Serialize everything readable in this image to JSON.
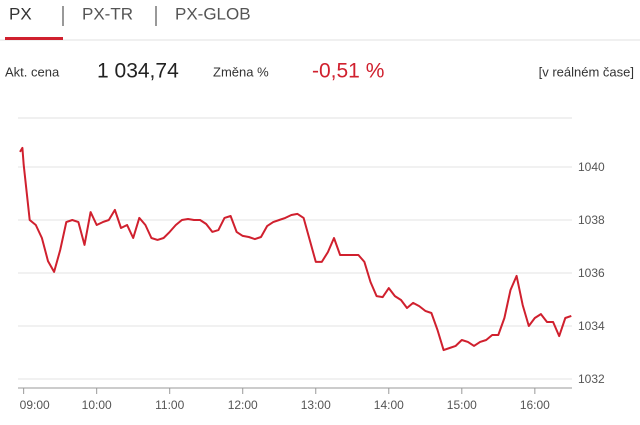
{
  "tabs": [
    "PX",
    "PX-TR",
    "PX-GLOB"
  ],
  "info": {
    "price_label": "Akt. cena",
    "price": "1 034,74",
    "change_label": "Změna %",
    "change": "-0,51 %",
    "mode": "[v reálném čase]"
  },
  "chart_data": {
    "type": "line",
    "color": "#d0202e",
    "grid": true,
    "x": [
      -3,
      -1,
      0,
      5,
      10,
      15,
      20,
      25,
      30,
      35,
      40,
      45,
      50,
      55,
      60,
      65,
      70,
      75,
      80,
      85,
      90,
      95,
      100,
      105,
      110,
      115,
      120,
      125,
      130,
      135,
      140,
      145,
      150,
      155,
      160,
      165,
      170,
      175,
      180,
      185,
      190,
      195,
      200,
      205,
      210,
      215,
      220,
      225,
      230,
      235,
      240,
      245,
      250,
      255,
      260,
      265,
      270,
      275,
      280,
      285,
      290,
      295,
      300,
      305,
      310,
      315,
      320,
      325,
      330,
      335,
      340,
      345,
      350,
      355,
      360,
      365,
      370,
      375,
      380,
      385,
      390,
      395,
      400,
      405,
      410,
      415,
      420,
      425,
      430,
      435,
      440,
      445,
      450
    ],
    "values": [
      1040.57,
      1040.72,
      1040.08,
      1038.0,
      1037.81,
      1037.32,
      1036.45,
      1036.04,
      1036.87,
      1037.92,
      1038.0,
      1037.92,
      1037.06,
      1038.3,
      1037.81,
      1037.92,
      1038.0,
      1038.38,
      1037.7,
      1037.81,
      1037.32,
      1038.08,
      1037.81,
      1037.32,
      1037.25,
      1037.32,
      1037.55,
      1037.81,
      1038.0,
      1038.04,
      1038.0,
      1038.0,
      1037.85,
      1037.55,
      1037.62,
      1038.08,
      1038.15,
      1037.55,
      1037.4,
      1037.36,
      1037.28,
      1037.36,
      1037.77,
      1037.92,
      1038.0,
      1038.08,
      1038.19,
      1038.23,
      1038.08,
      1037.25,
      1036.42,
      1036.42,
      1036.79,
      1037.32,
      1036.68,
      1036.68,
      1036.68,
      1036.68,
      1036.42,
      1035.66,
      1035.13,
      1035.09,
      1035.43,
      1035.13,
      1034.98,
      1034.68,
      1034.87,
      1034.75,
      1034.57,
      1034.49,
      1033.85,
      1033.09,
      1033.17,
      1033.25,
      1033.47,
      1033.4,
      1033.25,
      1033.4,
      1033.47,
      1033.66,
      1033.66,
      1034.3,
      1035.36,
      1035.89,
      1034.79,
      1034.0,
      1034.3,
      1034.45,
      1034.15,
      1034.15,
      1033.62,
      1034.3,
      1034.38
    ],
    "xlim": [
      -3,
      453
    ],
    "xticks": [
      {
        "value": 0,
        "label": "09:00"
      },
      {
        "value": 60,
        "label": "10:00"
      },
      {
        "value": 120,
        "label": "11:00"
      },
      {
        "value": 180,
        "label": "12:00"
      },
      {
        "value": 240,
        "label": "13:00"
      },
      {
        "value": 300,
        "label": "14:00"
      },
      {
        "value": 360,
        "label": "15:00"
      },
      {
        "value": 420,
        "label": "16:00"
      }
    ],
    "ylim": [
      1031.66,
      1041.85
    ],
    "yticks": [
      1032,
      1034,
      1036,
      1038,
      1040
    ]
  }
}
